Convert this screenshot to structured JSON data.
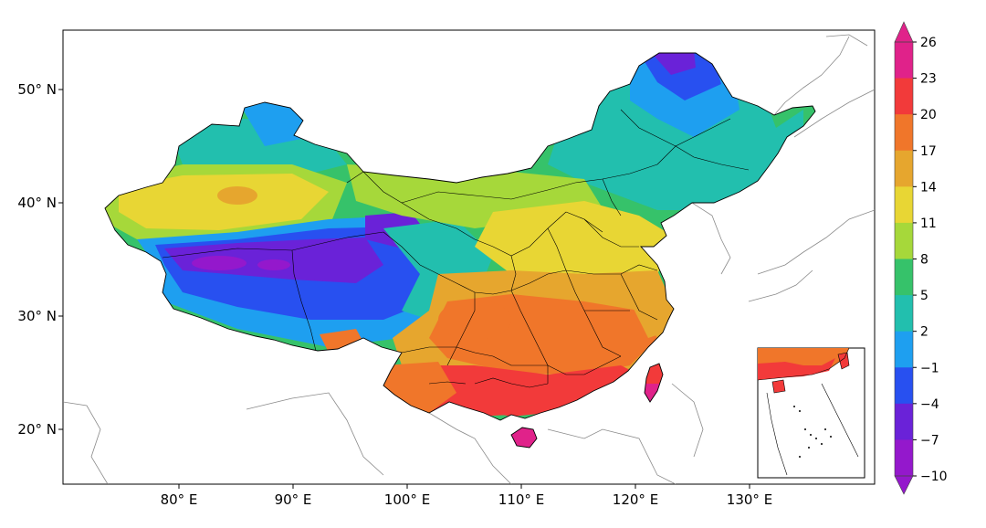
{
  "map": {
    "lon_ticks": [
      "80° E",
      "90° E",
      "100° E",
      "110° E",
      "120° E",
      "130° E"
    ],
    "lat_ticks": [
      "50° N",
      "40° N",
      "30° N",
      "20° N"
    ],
    "lon_values": [
      80,
      90,
      100,
      110,
      120,
      130
    ],
    "lat_values": [
      50,
      40,
      30,
      20
    ]
  },
  "colorbar": {
    "ticks": [
      "26",
      "23",
      "20",
      "17",
      "14",
      "11",
      "8",
      "5",
      "2",
      "−1",
      "−4",
      "−7",
      "−10"
    ],
    "colors": [
      "#e0228a",
      "#f23a3a",
      "#f0762a",
      "#e6a62e",
      "#e8d634",
      "#a6d83a",
      "#36c26a",
      "#22bfae",
      "#1e9ff0",
      "#2850f0",
      "#6a22d8",
      "#9418cc"
    ]
  },
  "palette": {
    "v_neg10": "#9418cc",
    "v_neg7": "#6a22d8",
    "v_neg4": "#2850f0",
    "v_neg1": "#1e9ff0",
    "v_2": "#22bfae",
    "v_5": "#36c26a",
    "v_8": "#a6d83a",
    "v_11": "#e8d634",
    "v_14": "#e6a62e",
    "v_17": "#f0762a",
    "v_20": "#f23a3a",
    "v_23": "#e0228a"
  }
}
